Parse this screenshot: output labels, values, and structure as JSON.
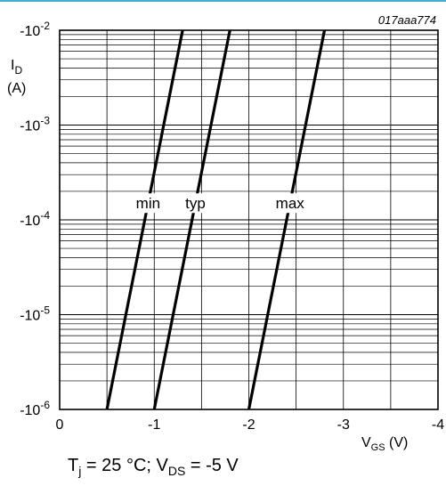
{
  "chart_data": {
    "type": "line",
    "figure_id": "017aaa774",
    "ylabel": {
      "main": "I",
      "sub": "D",
      "unit": "(A)"
    },
    "xlabel": {
      "main": "V",
      "sub": "GS",
      "unit": " (V)"
    },
    "x_ticks": [
      "0",
      "-1",
      "-2",
      "-3",
      "-4"
    ],
    "y_ticks": [
      {
        "base": "-10",
        "exp": "-6"
      },
      {
        "base": "-10",
        "exp": "-5"
      },
      {
        "base": "-10",
        "exp": "-4"
      },
      {
        "base": "-10",
        "exp": "-3"
      },
      {
        "base": "-10",
        "exp": "-2"
      }
    ],
    "xlim": [
      0,
      -4
    ],
    "ylim": [
      -1e-06,
      -0.01
    ],
    "y_scale": "log",
    "grid": true,
    "series": [
      {
        "name": "min",
        "x": [
          -0.5,
          -1.3
        ],
        "y": [
          -1e-06,
          -0.01
        ]
      },
      {
        "name": "typ",
        "x": [
          -1.0,
          -1.8
        ],
        "y": [
          -1e-06,
          -0.01
        ]
      },
      {
        "name": "max",
        "x": [
          -2.0,
          -2.8
        ],
        "y": [
          -1e-06,
          -0.01
        ]
      }
    ],
    "series_label_level": -0.00015
  },
  "caption": {
    "t_main": "T",
    "t_sub": "j",
    "t_val": " = 25 °C; V",
    "v_sub": "DS",
    "v_val": " = -5 V"
  }
}
